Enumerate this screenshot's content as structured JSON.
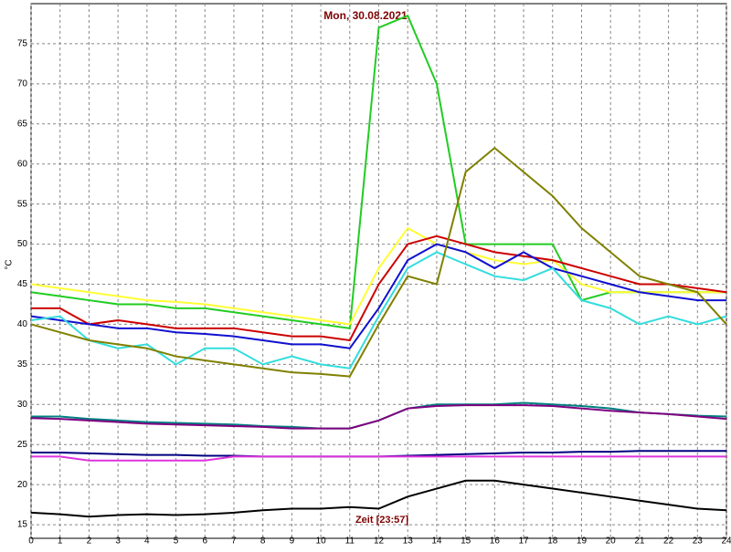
{
  "chart_data": {
    "type": "line",
    "title": "Mon, 30.08.2021",
    "y_label": "°C",
    "annotation": "Zeit [23:57]",
    "x": [
      0,
      1,
      2,
      3,
      4,
      5,
      6,
      7,
      8,
      9,
      10,
      11,
      12,
      13,
      14,
      15,
      16,
      17,
      18,
      19,
      20,
      21,
      22,
      23,
      24
    ],
    "xlim": [
      0,
      24
    ],
    "xticks": [
      0,
      1,
      2,
      3,
      4,
      5,
      6,
      7,
      8,
      9,
      10,
      11,
      12,
      13,
      14,
      15,
      16,
      17,
      18,
      19,
      20,
      21,
      22,
      23,
      24
    ],
    "ylim": [
      13.3,
      80
    ],
    "yticks": [
      15,
      20,
      25,
      30,
      35,
      40,
      45,
      50,
      55,
      60,
      65,
      70,
      75
    ],
    "grid": true,
    "series": [
      {
        "color": "#22cc22",
        "values": [
          44,
          43.5,
          43,
          42.5,
          42.5,
          42,
          42,
          41.5,
          41,
          40.5,
          40,
          39.5,
          77,
          78.5,
          70,
          50,
          50,
          50,
          50,
          43,
          44,
          44,
          44,
          44,
          44
        ]
      },
      {
        "color": "#ffff33",
        "values": [
          45,
          44.5,
          44,
          43.5,
          43,
          42.8,
          42.5,
          42,
          41.5,
          41,
          40.5,
          40,
          47,
          52,
          50,
          49,
          48,
          47.5,
          48,
          45,
          44,
          44,
          44,
          44,
          44
        ]
      },
      {
        "color": "#cc0000",
        "values": [
          42,
          42,
          40,
          40.5,
          40,
          39.5,
          39.5,
          39.5,
          39,
          38.5,
          38.5,
          38,
          45,
          50,
          51,
          50,
          49,
          48.5,
          48,
          47,
          46,
          45,
          45,
          44.5,
          44
        ]
      },
      {
        "color": "#1010d0",
        "values": [
          41,
          40.5,
          40,
          39.5,
          39.5,
          39,
          38.8,
          38.5,
          38,
          37.5,
          37.5,
          37,
          42,
          48,
          50,
          49,
          47,
          49,
          47,
          46,
          45,
          44,
          43.5,
          43,
          43
        ]
      },
      {
        "color": "#33dddd",
        "values": [
          40.5,
          41,
          38,
          37,
          37.5,
          35,
          37,
          37,
          35,
          36,
          35,
          34.5,
          41,
          47,
          49,
          47.5,
          46,
          45.5,
          47,
          43,
          42,
          40,
          41,
          40,
          41
        ]
      },
      {
        "color": "#808000",
        "values": [
          40,
          39,
          38,
          37.5,
          37,
          36,
          35.5,
          35,
          34.5,
          34,
          33.8,
          33.5,
          40,
          46,
          45,
          59,
          62,
          59,
          56,
          52,
          49,
          46,
          45,
          44,
          40
        ]
      },
      {
        "color": "#008080",
        "values": [
          28.5,
          28.5,
          28.2,
          28,
          27.8,
          27.7,
          27.6,
          27.5,
          27.3,
          27.2,
          27,
          27,
          28,
          29.5,
          30,
          30,
          30,
          30.2,
          30,
          29.8,
          29.5,
          29,
          28.8,
          28.6,
          28.5
        ]
      },
      {
        "color": "#800080",
        "values": [
          28.3,
          28.2,
          28,
          27.8,
          27.6,
          27.5,
          27.4,
          27.3,
          27.2,
          27,
          27,
          27,
          28,
          29.5,
          29.8,
          29.9,
          29.9,
          29.9,
          29.8,
          29.5,
          29.2,
          29,
          28.8,
          28.5,
          28.2
        ]
      },
      {
        "color": "#000080",
        "values": [
          24,
          24,
          23.9,
          23.8,
          23.7,
          23.7,
          23.6,
          23.6,
          23.5,
          23.5,
          23.5,
          23.5,
          23.5,
          23.6,
          23.7,
          23.8,
          23.9,
          24,
          24,
          24.1,
          24.1,
          24.2,
          24.2,
          24.2,
          24.2
        ]
      },
      {
        "color": "#dd33dd",
        "values": [
          23.5,
          23.5,
          23,
          23,
          23,
          23,
          23,
          23.5,
          23.5,
          23.5,
          23.5,
          23.5,
          23.5,
          23.5,
          23.5,
          23.5,
          23.5,
          23.5,
          23.5,
          23.5,
          23.5,
          23.5,
          23.5,
          23.5,
          23.5
        ]
      },
      {
        "color": "#000000",
        "values": [
          16.5,
          16.3,
          16,
          16.2,
          16.3,
          16.2,
          16.3,
          16.5,
          16.8,
          17,
          17,
          17.2,
          17,
          18.5,
          19.5,
          20.5,
          20.5,
          20,
          19.5,
          19,
          18.5,
          18,
          17.5,
          17,
          16.8
        ]
      }
    ]
  }
}
